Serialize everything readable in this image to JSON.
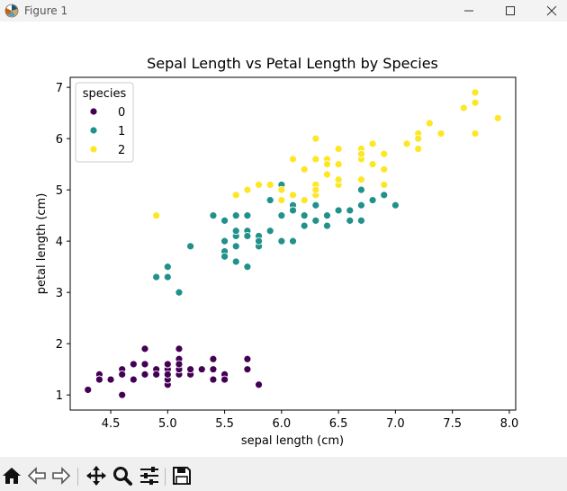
{
  "window": {
    "title": "Figure 1",
    "minimize_icon": "minimize-icon",
    "maximize_icon": "maximize-icon",
    "close_icon": "close-icon"
  },
  "toolbar": {
    "buttons": [
      "home-icon",
      "back-arrow-icon",
      "forward-arrow-icon",
      "pan-icon",
      "zoom-icon",
      "configure-subplots-icon",
      "save-icon"
    ]
  },
  "chart_data": {
    "type": "scatter",
    "title": "Sepal Length vs Petal Length by Species",
    "xlabel": "sepal length (cm)",
    "ylabel": "petal length (cm)",
    "xlim": [
      4.144,
      8.056
    ],
    "ylim": [
      0.705,
      7.195
    ],
    "xticks": [
      "4.5",
      "5.0",
      "5.5",
      "6.0",
      "6.5",
      "7.0",
      "7.5",
      "8.0"
    ],
    "xtick_values": [
      4.5,
      5.0,
      5.5,
      6.0,
      6.5,
      7.0,
      7.5,
      8.0
    ],
    "yticks": [
      "1",
      "2",
      "3",
      "4",
      "5",
      "6",
      "7"
    ],
    "ytick_values": [
      1,
      2,
      3,
      4,
      5,
      6,
      7
    ],
    "grid": false,
    "legend": {
      "title": "species",
      "placement": "top-left"
    },
    "series": [
      {
        "name": "0",
        "color": "#440154",
        "points": [
          [
            5.1,
            1.4
          ],
          [
            4.9,
            1.4
          ],
          [
            4.7,
            1.3
          ],
          [
            4.6,
            1.5
          ],
          [
            5.0,
            1.4
          ],
          [
            5.4,
            1.7
          ],
          [
            4.6,
            1.4
          ],
          [
            5.0,
            1.5
          ],
          [
            4.4,
            1.4
          ],
          [
            4.9,
            1.5
          ],
          [
            5.4,
            1.5
          ],
          [
            4.8,
            1.6
          ],
          [
            4.8,
            1.4
          ],
          [
            4.3,
            1.1
          ],
          [
            5.8,
            1.2
          ],
          [
            5.7,
            1.5
          ],
          [
            5.4,
            1.3
          ],
          [
            5.1,
            1.4
          ],
          [
            5.7,
            1.7
          ],
          [
            5.1,
            1.5
          ],
          [
            5.4,
            1.7
          ],
          [
            5.1,
            1.5
          ],
          [
            4.6,
            1.0
          ],
          [
            5.1,
            1.7
          ],
          [
            4.8,
            1.9
          ],
          [
            5.0,
            1.6
          ],
          [
            5.0,
            1.6
          ],
          [
            5.2,
            1.5
          ],
          [
            5.2,
            1.4
          ],
          [
            4.7,
            1.6
          ],
          [
            4.8,
            1.6
          ],
          [
            5.4,
            1.5
          ],
          [
            5.2,
            1.5
          ],
          [
            5.5,
            1.4
          ],
          [
            4.9,
            1.5
          ],
          [
            5.0,
            1.2
          ],
          [
            5.5,
            1.3
          ],
          [
            4.9,
            1.4
          ],
          [
            4.4,
            1.3
          ],
          [
            5.1,
            1.5
          ],
          [
            5.0,
            1.3
          ],
          [
            4.5,
            1.3
          ],
          [
            4.4,
            1.3
          ],
          [
            5.0,
            1.6
          ],
          [
            5.1,
            1.9
          ],
          [
            4.8,
            1.4
          ],
          [
            5.1,
            1.6
          ],
          [
            4.6,
            1.4
          ],
          [
            5.3,
            1.5
          ],
          [
            5.0,
            1.4
          ]
        ]
      },
      {
        "name": "1",
        "color": "#21918c",
        "points": [
          [
            7.0,
            4.7
          ],
          [
            6.4,
            4.5
          ],
          [
            6.9,
            4.9
          ],
          [
            5.5,
            4.0
          ],
          [
            6.5,
            4.6
          ],
          [
            5.7,
            4.5
          ],
          [
            6.3,
            4.7
          ],
          [
            4.9,
            3.3
          ],
          [
            6.6,
            4.6
          ],
          [
            5.2,
            3.9
          ],
          [
            5.0,
            3.5
          ],
          [
            5.9,
            4.2
          ],
          [
            6.0,
            4.0
          ],
          [
            6.1,
            4.7
          ],
          [
            5.6,
            3.6
          ],
          [
            6.7,
            4.4
          ],
          [
            5.6,
            4.5
          ],
          [
            5.8,
            4.1
          ],
          [
            6.2,
            4.5
          ],
          [
            5.6,
            3.9
          ],
          [
            5.9,
            4.8
          ],
          [
            6.1,
            4.0
          ],
          [
            6.3,
            4.9
          ],
          [
            6.1,
            4.7
          ],
          [
            6.4,
            4.3
          ],
          [
            6.6,
            4.4
          ],
          [
            6.8,
            4.8
          ],
          [
            6.7,
            5.0
          ],
          [
            6.0,
            4.5
          ],
          [
            5.7,
            3.5
          ],
          [
            5.5,
            3.8
          ],
          [
            5.5,
            3.7
          ],
          [
            5.8,
            3.9
          ],
          [
            6.0,
            5.1
          ],
          [
            5.4,
            4.5
          ],
          [
            6.0,
            4.5
          ],
          [
            6.7,
            4.7
          ],
          [
            6.3,
            4.4
          ],
          [
            5.6,
            4.1
          ],
          [
            5.5,
            4.0
          ],
          [
            5.5,
            4.4
          ],
          [
            6.1,
            4.6
          ],
          [
            5.8,
            4.0
          ],
          [
            5.0,
            3.3
          ],
          [
            5.6,
            4.2
          ],
          [
            5.7,
            4.2
          ],
          [
            5.7,
            4.2
          ],
          [
            6.2,
            4.3
          ],
          [
            5.1,
            3.0
          ],
          [
            5.7,
            4.1
          ]
        ]
      },
      {
        "name": "2",
        "color": "#fde725",
        "points": [
          [
            6.3,
            6.0
          ],
          [
            5.8,
            5.1
          ],
          [
            7.1,
            5.9
          ],
          [
            6.3,
            5.6
          ],
          [
            6.5,
            5.8
          ],
          [
            7.6,
            6.6
          ],
          [
            4.9,
            4.5
          ],
          [
            7.3,
            6.3
          ],
          [
            6.7,
            5.8
          ],
          [
            7.2,
            6.1
          ],
          [
            6.5,
            5.1
          ],
          [
            6.4,
            5.3
          ],
          [
            6.8,
            5.5
          ],
          [
            5.7,
            5.0
          ],
          [
            5.8,
            5.1
          ],
          [
            6.4,
            5.3
          ],
          [
            6.5,
            5.5
          ],
          [
            7.7,
            6.7
          ],
          [
            7.7,
            6.9
          ],
          [
            6.0,
            5.0
          ],
          [
            6.9,
            5.7
          ],
          [
            5.6,
            4.9
          ],
          [
            7.7,
            6.7
          ],
          [
            6.3,
            4.9
          ],
          [
            6.7,
            5.7
          ],
          [
            7.2,
            6.0
          ],
          [
            6.2,
            4.8
          ],
          [
            6.1,
            4.9
          ],
          [
            6.4,
            5.6
          ],
          [
            7.2,
            5.8
          ],
          [
            7.4,
            6.1
          ],
          [
            7.9,
            6.4
          ],
          [
            6.4,
            5.6
          ],
          [
            6.3,
            5.1
          ],
          [
            6.1,
            5.6
          ],
          [
            7.7,
            6.1
          ],
          [
            6.3,
            5.6
          ],
          [
            6.4,
            5.5
          ],
          [
            6.0,
            4.8
          ],
          [
            6.9,
            5.4
          ],
          [
            6.7,
            5.6
          ],
          [
            6.9,
            5.1
          ],
          [
            5.8,
            5.1
          ],
          [
            6.8,
            5.9
          ],
          [
            6.7,
            5.7
          ],
          [
            6.7,
            5.2
          ],
          [
            6.3,
            5.0
          ],
          [
            6.5,
            5.2
          ],
          [
            6.2,
            5.4
          ],
          [
            5.9,
            5.1
          ]
        ]
      }
    ]
  }
}
